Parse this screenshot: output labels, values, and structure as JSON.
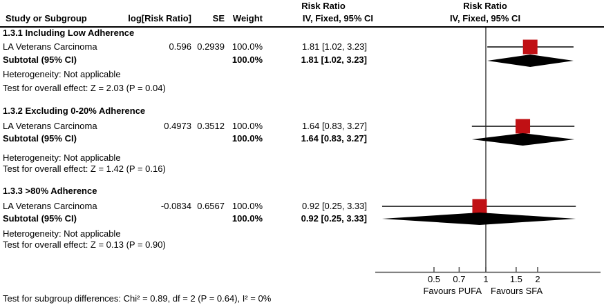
{
  "header": {
    "col_study": "Study or Subgroup",
    "col_log_rr": "log[Risk Ratio]",
    "col_se": "SE",
    "col_weight": "Weight",
    "col_ci": "IV, Fixed, 95% CI",
    "effect_label": "Risk Ratio"
  },
  "colors": {
    "square": "#c01014",
    "diamond": "#000000",
    "ci_line": "#262626",
    "axis": "#4d4d4d"
  },
  "chart_data": {
    "type": "forest",
    "effect_measure": "Risk Ratio",
    "method": "IV, Fixed, 95% CI",
    "x_scale": "log",
    "x_ticks": [
      0.5,
      0.7,
      1,
      1.5,
      2
    ],
    "x_plot_range": [
      0.23,
      4.6
    ],
    "x_axis_labels": {
      "left": "Favours PUFA",
      "right": "Favours SFA"
    },
    "subgroups": [
      {
        "title": "1.3.1 Including Low Adherence",
        "studies": [
          {
            "name": "LA Veterans Carcinoma",
            "log_rr": "0.596",
            "se": "0.2939",
            "weight": "100.0%",
            "rr": 1.81,
            "ci_low": 1.02,
            "ci_high": 3.23,
            "ci_text": "1.81 [1.02, 3.23]"
          }
        ],
        "subtotal": {
          "label": "Subtotal (95% CI)",
          "weight": "100.0%",
          "rr": 1.81,
          "ci_low": 1.02,
          "ci_high": 3.23,
          "ci_text": "1.81 [1.02, 3.23]"
        },
        "heterogeneity": "Heterogeneity: Not applicable",
        "overall_effect_test": "Test for overall effect: Z = 2.03 (P = 0.04)"
      },
      {
        "title": "1.3.2 Excluding 0-20% Adherence",
        "studies": [
          {
            "name": "LA Veterans Carcinoma",
            "log_rr": "0.4973",
            "se": "0.3512",
            "weight": "100.0%",
            "rr": 1.64,
            "ci_low": 0.83,
            "ci_high": 3.27,
            "ci_text": "1.64 [0.83, 3.27]"
          }
        ],
        "subtotal": {
          "label": "Subtotal (95% CI)",
          "weight": "100.0%",
          "rr": 1.64,
          "ci_low": 0.83,
          "ci_high": 3.27,
          "ci_text": "1.64 [0.83, 3.27]"
        },
        "heterogeneity": "Heterogeneity: Not applicable",
        "overall_effect_test": "Test for overall effect: Z = 1.42 (P = 0.16)"
      },
      {
        "title": "1.3.3 >80% Adherence",
        "studies": [
          {
            "name": "LA Veterans Carcinoma",
            "log_rr": "-0.0834",
            "se": "0.6567",
            "weight": "100.0%",
            "rr": 0.92,
            "ci_low": 0.25,
            "ci_high": 3.33,
            "ci_text": "0.92 [0.25, 3.33]"
          }
        ],
        "subtotal": {
          "label": "Subtotal (95% CI)",
          "weight": "100.0%",
          "rr": 0.92,
          "ci_low": 0.25,
          "ci_high": 3.33,
          "ci_text": "0.92 [0.25, 3.33]"
        },
        "heterogeneity": "Heterogeneity: Not applicable",
        "overall_effect_test": "Test for overall effect: Z = 0.13 (P = 0.90)"
      }
    ],
    "subgroup_difference_test": "Test for subgroup differences: Chi² = 0.89, df = 2 (P = 0.64), I² = 0%"
  }
}
